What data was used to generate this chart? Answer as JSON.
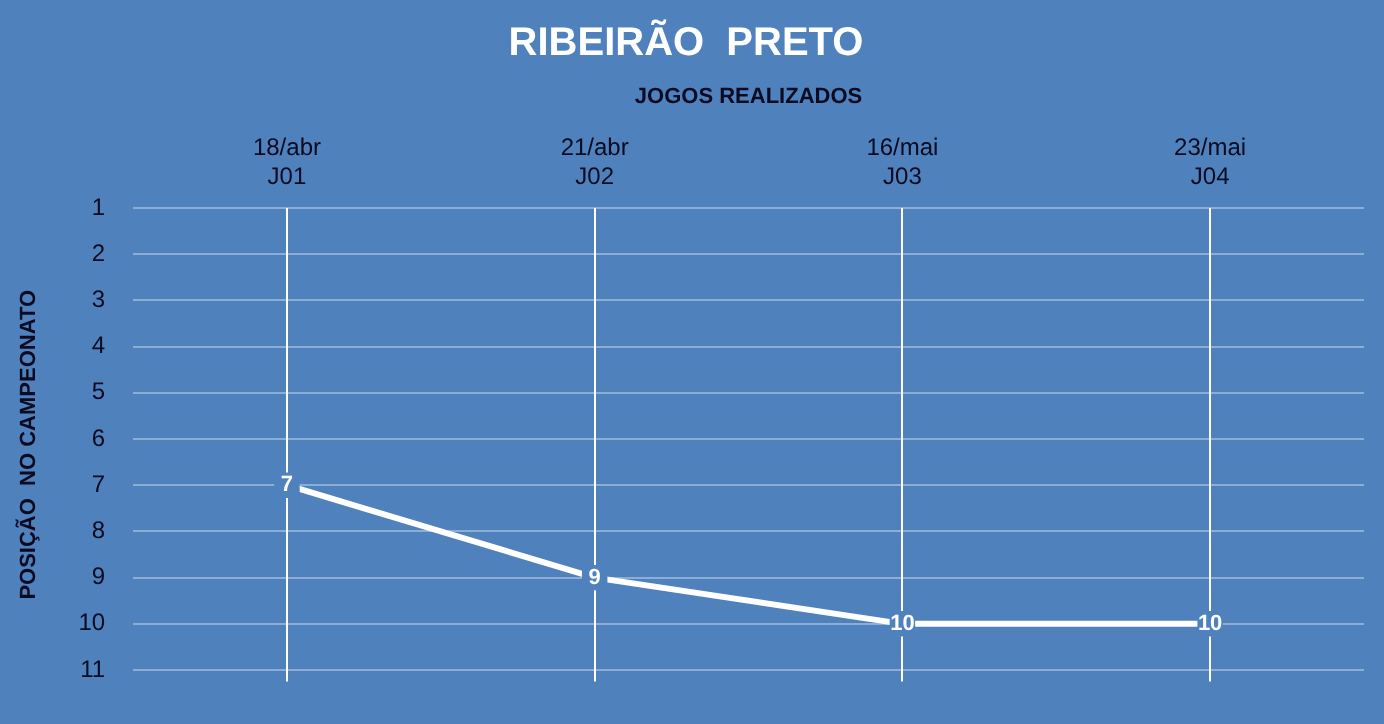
{
  "chart_data": {
    "type": "line",
    "title": "RIBEIRÃO  PRETO",
    "xlabel": "JOGOS REALIZADOS",
    "ylabel": "POSIÇÃO  NO CAMPEONATO",
    "categories": [
      "18/abr\nJ01",
      "21/abr\nJ02",
      "16/mai\nJ03",
      "23/mai\nJ04"
    ],
    "series": [
      {
        "color": "#ffffff",
        "values": [
          7,
          9,
          10,
          10
        ]
      }
    ],
    "ylim": [
      11.25,
      1
    ],
    "yticks": [
      1,
      2,
      3,
      4,
      5,
      6,
      7,
      8,
      9,
      10,
      11
    ],
    "grid": true,
    "legend": false,
    "marker": "square",
    "line_style": "solid",
    "data_labels": true
  }
}
